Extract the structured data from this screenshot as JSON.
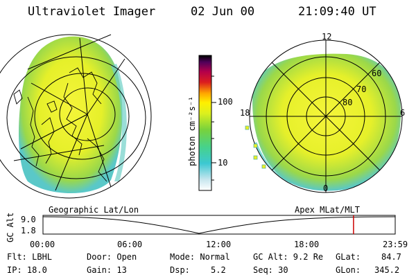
{
  "header": {
    "instrument": "Ultraviolet Imager",
    "date": "02 Jun 00",
    "time": "21:09:40 UT"
  },
  "colorbar": {
    "unit_label": "photon cm⁻²s⁻¹",
    "ticks": [
      "100",
      "10"
    ]
  },
  "left_panel": {
    "label": "Geographic Lat/Lon"
  },
  "right_panel": {
    "label": "Apex MLat/MLT",
    "mlt_labels": [
      "12",
      "18",
      "6",
      "0"
    ],
    "lat_labels": [
      "60",
      "70",
      "80"
    ]
  },
  "altitude_strip": {
    "ylabel": "GC Alt",
    "y_ticks": [
      "9.0",
      "1.8"
    ],
    "x_ticks": [
      "00:00",
      "06:00",
      "12:00",
      "18:00",
      "23:59"
    ],
    "marker_time_hours": 21.16,
    "marker_color": "#cc0000"
  },
  "status": {
    "flt": "Flt: LBHL",
    "ip": "IP: 18.0",
    "door": "Door: Open",
    "gain": "Gain: 13",
    "mode": "Mode: Normal",
    "dsp_label": "Dsp:",
    "dsp_value": "5.2",
    "gc_alt": "GC Alt: 9.2 Re",
    "seq": "Seq: 30",
    "glat_label": "GLat:",
    "glat_value": "84.7",
    "glon_label": "GLon:",
    "glon_value": "345.2"
  },
  "colors": {
    "aurora_yellow": "#f0f01e",
    "aurora_green": "#8ad24a",
    "aurora_cyan": "#4ecfd8"
  }
}
